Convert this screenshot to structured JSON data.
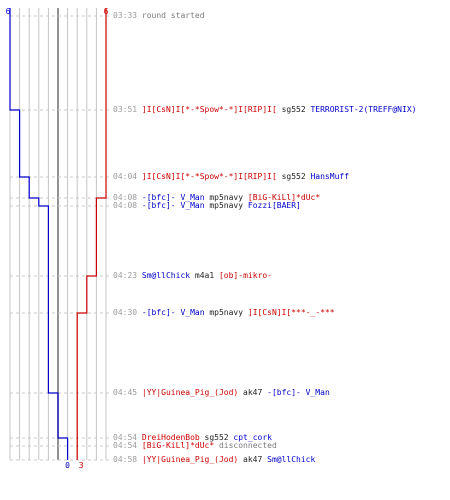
{
  "header": {
    "score_left": "6",
    "score_right": "6"
  },
  "footer": {
    "score_left": "0",
    "score_right": "3"
  },
  "colors": {
    "red": "#cc0000",
    "blue": "#0000cc",
    "grid": "#c4c4c4",
    "mid": "#777777",
    "time": "#9b9b9b"
  },
  "rounds": 10,
  "step_chart": {
    "blue_steps": [
      {
        "score": 6,
        "end_time": "03:51"
      },
      {
        "score": 5,
        "end_time": "04:04"
      },
      {
        "score": 4,
        "end_time": "04:08"
      },
      {
        "score": 3,
        "end_time": "04:08"
      },
      {
        "score": 2,
        "end_time": "04:45"
      },
      {
        "score": 1,
        "end_time": "04:54"
      },
      {
        "score": 0,
        "end_time": "04:58"
      }
    ],
    "red_steps": [
      {
        "score": 6,
        "end_time": "04:08"
      },
      {
        "score": 5,
        "end_time": "04:23"
      },
      {
        "score": 4,
        "end_time": "04:30"
      },
      {
        "score": 3,
        "end_time": "04:58"
      }
    ]
  },
  "events": [
    {
      "time": "03:33",
      "parts": [
        {
          "text": "round started",
          "c": "grey"
        }
      ]
    },
    {
      "time": "03:51",
      "parts": [
        {
          "text": "]I[CsN]I[*-*Spow*-*]I[RIP]I[",
          "c": "red"
        },
        {
          "text": " sg552 ",
          "c": "black"
        },
        {
          "text": "TERRORIST-2(TREFF@NIX)",
          "c": "blue"
        }
      ]
    },
    {
      "time": "04:04",
      "parts": [
        {
          "text": "]I[CsN]I[*-*Spow*-*]I[RIP]I[",
          "c": "red"
        },
        {
          "text": " sg552 ",
          "c": "black"
        },
        {
          "text": "HansMuff",
          "c": "blue"
        }
      ]
    },
    {
      "time": "04:08",
      "parts": [
        {
          "text": "-[bfc]- V_Man",
          "c": "blue"
        },
        {
          "text": " mp5navy ",
          "c": "black"
        },
        {
          "text": "[BiG-KiLl]*dUc*",
          "c": "red"
        }
      ]
    },
    {
      "time": "04:08",
      "parts": [
        {
          "text": "-[bfc]- V_Man",
          "c": "blue"
        },
        {
          "text": " mp5navy ",
          "c": "black"
        },
        {
          "text": "Fozzi[BAER]",
          "c": "blue"
        }
      ]
    },
    {
      "time": "04:23",
      "parts": [
        {
          "text": "Sm@llChick",
          "c": "blue"
        },
        {
          "text": " m4a1 ",
          "c": "black"
        },
        {
          "text": "[ob]-mikro-",
          "c": "red"
        }
      ]
    },
    {
      "time": "04:30",
      "parts": [
        {
          "text": "-[bfc]- V_Man",
          "c": "blue"
        },
        {
          "text": " mp5navy ",
          "c": "black"
        },
        {
          "text": "]I[CsN]I[***-_-***",
          "c": "red"
        }
      ]
    },
    {
      "time": "04:45",
      "parts": [
        {
          "text": "|YY|Guinea_Pig_(Jod)",
          "c": "red"
        },
        {
          "text": " ak47 ",
          "c": "black"
        },
        {
          "text": "-[bfc]- V_Man",
          "c": "blue"
        }
      ]
    },
    {
      "time": "04:54",
      "parts": [
        {
          "text": "DreiHodenBob",
          "c": "red"
        },
        {
          "text": " sg552 ",
          "c": "black"
        },
        {
          "text": "cpt_cork",
          "c": "blue"
        }
      ]
    },
    {
      "time": "04:54",
      "parts": [
        {
          "text": "[BiG-KiLl]*dUc*",
          "c": "red"
        },
        {
          "text": " disconnected",
          "c": "grey"
        }
      ]
    },
    {
      "time": "04:58",
      "parts": [
        {
          "text": "|YY|Guinea_Pig_(Jod)",
          "c": "red"
        },
        {
          "text": " ak47 ",
          "c": "black"
        },
        {
          "text": "Sm@llChick",
          "c": "blue"
        }
      ]
    }
  ]
}
